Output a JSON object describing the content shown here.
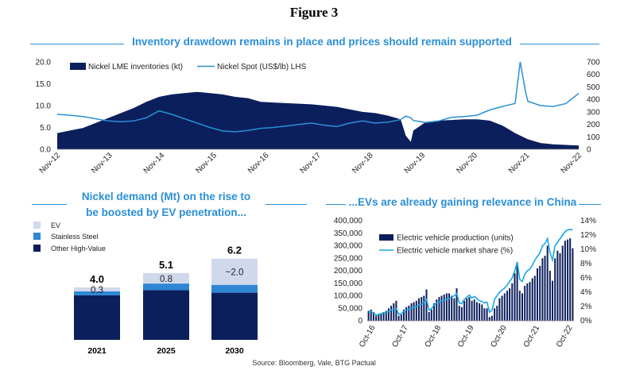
{
  "figure_title": "Figure 3",
  "source": "Source: Bloomberg, Vale, BTG Pactual",
  "colors": {
    "navy": "#0b1f5c",
    "accent": "#2a8fd6",
    "light": "#d0d8ec",
    "mid": "#2f86d4"
  },
  "chart_data": [
    {
      "type": "area",
      "title": "Inventory drawdown remains in place and prices should remain supported",
      "x_tick_labels": [
        "Nov-12",
        "Nov-13",
        "Nov-14",
        "Nov-15",
        "Nov-16",
        "Nov-17",
        "Nov-18",
        "Nov-19",
        "Nov-20",
        "Nov-21",
        "Nov-22"
      ],
      "y_left_ticks": [
        "0.0",
        "5.0",
        "10.0",
        "15.0",
        "20.0"
      ],
      "y_right_ticks": [
        "0",
        "100",
        "200",
        "300",
        "400",
        "500",
        "600",
        "700"
      ],
      "ylim_left": [
        0,
        20
      ],
      "ylim_right": [
        0,
        700
      ],
      "series": [
        {
          "name": "Nickel LME inventories (kt)",
          "kind": "area",
          "axis": "right",
          "x": [
            0,
            0.25,
            0.5,
            0.75,
            1,
            1.25,
            1.5,
            1.75,
            2,
            2.25,
            2.5,
            2.75,
            3,
            3.25,
            3.5,
            3.75,
            4,
            4.25,
            4.5,
            4.75,
            5,
            5.25,
            5.5,
            5.75,
            6,
            6.25,
            6.5,
            6.75,
            6.85,
            6.95,
            7,
            7.25,
            7.5,
            7.75,
            8,
            8.25,
            8.5,
            8.75,
            9,
            9.25,
            9.5,
            9.75,
            10,
            10.25
          ],
          "values": [
            130,
            150,
            170,
            210,
            250,
            290,
            330,
            380,
            420,
            440,
            450,
            460,
            450,
            440,
            420,
            410,
            380,
            375,
            370,
            365,
            360,
            350,
            340,
            320,
            300,
            290,
            270,
            240,
            110,
            60,
            150,
            220,
            230,
            235,
            240,
            240,
            230,
            190,
            130,
            80,
            50,
            40,
            35,
            30
          ]
        },
        {
          "name": "Nickel Spot (US$/lb) LHS",
          "kind": "line",
          "axis": "left",
          "x": [
            0,
            0.25,
            0.5,
            0.75,
            1,
            1.25,
            1.5,
            1.75,
            2,
            2.25,
            2.5,
            2.75,
            3,
            3.25,
            3.5,
            3.75,
            4,
            4.25,
            4.5,
            4.75,
            5,
            5.25,
            5.5,
            5.75,
            6,
            6.25,
            6.5,
            6.75,
            6.85,
            6.95,
            7,
            7.25,
            7.5,
            7.75,
            8,
            8.25,
            8.5,
            8.75,
            9,
            9.1,
            9.2,
            9.25,
            9.5,
            9.75,
            10,
            10.25
          ],
          "values": [
            8.0,
            7.8,
            7.5,
            7.0,
            6.5,
            6.3,
            6.5,
            7.2,
            8.8,
            8.0,
            7.0,
            6.0,
            5.0,
            4.2,
            4.0,
            4.3,
            4.8,
            5.0,
            5.3,
            5.7,
            6.0,
            5.5,
            5.2,
            6.0,
            6.5,
            6.0,
            6.2,
            6.8,
            7.6,
            7.2,
            6.6,
            6.1,
            6.5,
            7.3,
            7.5,
            7.8,
            9.0,
            9.8,
            10.5,
            20.0,
            13.5,
            11.0,
            10.0,
            9.8,
            10.5,
            12.8
          ]
        }
      ],
      "legend": "top-left"
    },
    {
      "type": "bar",
      "stacked": true,
      "title": "Nickel demand (Mt) on the rise to be boosted by EV penetration...",
      "title_line1": "Nickel demand (Mt) on the rise to",
      "title_line2": "be boosted by EV penetration...",
      "categories": [
        "2021",
        "2025",
        "2030"
      ],
      "series": [
        {
          "name": "Other High-Value",
          "values": [
            3.4,
            3.8,
            3.6
          ]
        },
        {
          "name": "Stainless Steel",
          "values": [
            0.3,
            0.5,
            0.6
          ]
        },
        {
          "name": "EV",
          "values": [
            0.3,
            0.8,
            2.0
          ]
        }
      ],
      "totals": [
        "4.0",
        "5.1",
        "6.2"
      ],
      "ev_labels": [
        "0.3",
        "0.8",
        "~2.0"
      ],
      "ylim": [
        0,
        7
      ],
      "legend": "top-left"
    },
    {
      "type": "bar",
      "title": "...EVs are already gaining relevance in China",
      "x_tick_labels": [
        "Oct-16",
        "Oct-17",
        "Oct-18",
        "Oct-19",
        "Oct-20",
        "Oct-21",
        "Oct-22"
      ],
      "y_left_ticks": [
        "0",
        "50,000",
        "100,000",
        "150,000",
        "200,000",
        "250,000",
        "300,000",
        "350,000",
        "400,000"
      ],
      "y_right_ticks": [
        "0%",
        "2%",
        "4%",
        "6%",
        "8%",
        "10%",
        "12%",
        "14%"
      ],
      "ylim_left": [
        0,
        400000
      ],
      "ylim_right": [
        0,
        14
      ],
      "series": [
        {
          "name": "Electric vehicle production (units)",
          "kind": "bar",
          "axis": "left",
          "values": [
            40000,
            45000,
            35000,
            20000,
            25000,
            30000,
            35000,
            40000,
            50000,
            60000,
            70000,
            80000,
            20000,
            25000,
            45000,
            55000,
            60000,
            70000,
            75000,
            80000,
            90000,
            95000,
            100000,
            125000,
            35000,
            45000,
            70000,
            85000,
            95000,
            100000,
            105000,
            110000,
            110000,
            100000,
            90000,
            130000,
            60000,
            55000,
            80000,
            90000,
            95000,
            80000,
            85000,
            75000,
            70000,
            65000,
            50000,
            50000,
            15000,
            20000,
            50000,
            60000,
            90000,
            100000,
            110000,
            120000,
            130000,
            150000,
            190000,
            235000,
            120000,
            110000,
            140000,
            150000,
            155000,
            170000,
            180000,
            210000,
            220000,
            250000,
            260000,
            300000,
            200000,
            160000,
            250000,
            280000,
            270000,
            300000,
            320000,
            325000,
            330000,
            290000
          ]
        },
        {
          "name": "Electric vehicle market share (%)",
          "kind": "line",
          "axis": "right",
          "values": [
            1.2,
            1.3,
            1.1,
            0.8,
            0.9,
            1.0,
            1.1,
            1.2,
            1.3,
            1.5,
            1.6,
            1.7,
            0.9,
            1.0,
            1.3,
            1.5,
            1.6,
            1.8,
            1.9,
            2.0,
            2.2,
            2.3,
            2.6,
            3.0,
            1.5,
            1.7,
            2.2,
            2.5,
            2.6,
            2.8,
            2.9,
            3.0,
            3.1,
            3.3,
            3.5,
            3.8,
            2.5,
            2.4,
            3.0,
            3.3,
            3.6,
            3.2,
            3.4,
            3.1,
            2.8,
            2.7,
            2.5,
            2.6,
            1.2,
            1.5,
            3.0,
            3.5,
            4.0,
            4.3,
            4.6,
            5.0,
            5.5,
            6.0,
            7.0,
            8.2,
            5.8,
            5.5,
            6.5,
            7.0,
            7.2,
            7.8,
            8.5,
            9.0,
            9.5,
            10.5,
            10.8,
            11.5,
            9.5,
            8.5,
            10.5,
            11.0,
            11.5,
            12.0,
            12.5,
            12.7,
            12.8,
            12.7
          ]
        }
      ],
      "legend": "top-left"
    }
  ]
}
